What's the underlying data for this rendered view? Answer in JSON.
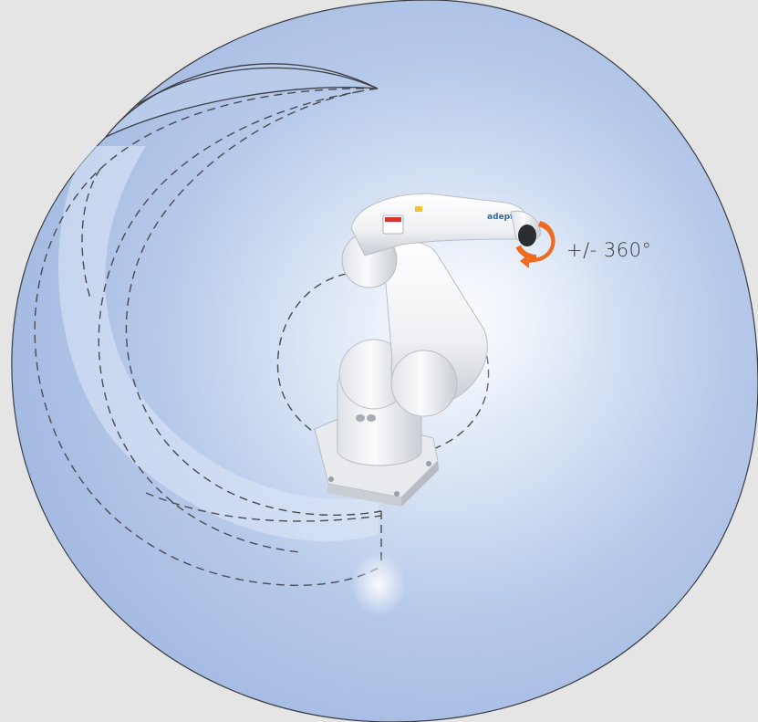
{
  "figure": {
    "rotation_label": "+/- 360°",
    "brand_text": "adept"
  },
  "colors": {
    "background": "#e5e5e6",
    "workspace_outer": "#a6bde3",
    "workspace_center": "#f2f5fb",
    "outline": "#3a3d44",
    "dash": "#4a4c52",
    "arrow": "#ef6a1f",
    "robot_body": "#f2f3f5",
    "robot_shadow": "#c7cbd2"
  },
  "icons": {
    "rotation_arrow": "circular-arrow-icon"
  }
}
